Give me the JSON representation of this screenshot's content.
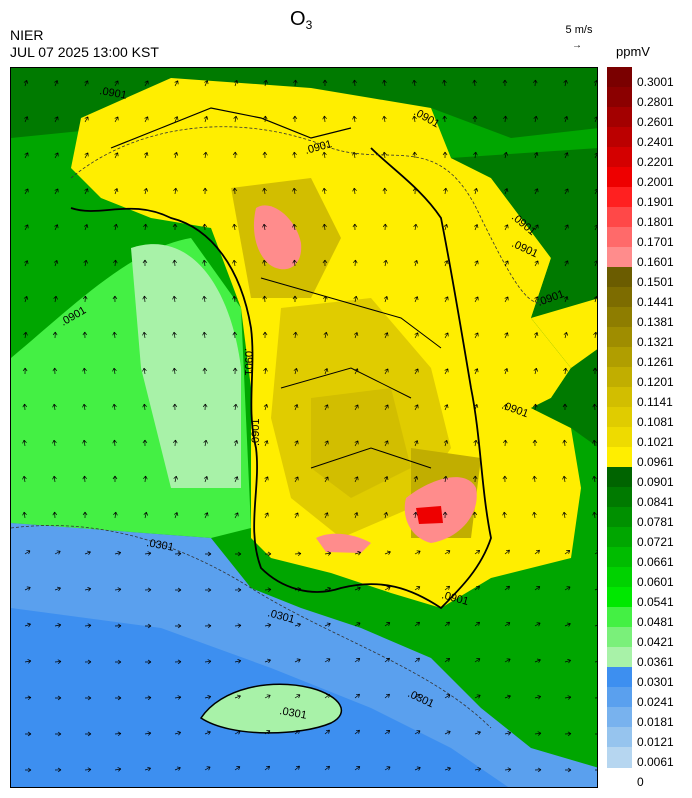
{
  "header": {
    "title_main": "O",
    "title_sub": "3",
    "source": "NIER",
    "datetime": "JUL 07 2025 13:00 KST",
    "wind_reference": "5 m/s",
    "wind_arrow": "→",
    "unit": "ppmV"
  },
  "colorbar": {
    "labels": [
      "0.3001",
      "0.2801",
      "0.2601",
      "0.2401",
      "0.2201",
      "0.2001",
      "0.1901",
      "0.1801",
      "0.1701",
      "0.1601",
      "0.1501",
      "0.1441",
      "0.1381",
      "0.1321",
      "0.1261",
      "0.1201",
      "0.1141",
      "0.1081",
      "0.1021",
      "0.0961",
      "0.0901",
      "0.0841",
      "0.0781",
      "0.0721",
      "0.0661",
      "0.0601",
      "0.0541",
      "0.0481",
      "0.0421",
      "0.0361",
      "0.0301",
      "0.0241",
      "0.0181",
      "0.0121",
      "0.0061",
      "0"
    ],
    "colors": [
      "#7a0000",
      "#8b0000",
      "#a30000",
      "#bb0000",
      "#d40000",
      "#ee0000",
      "#ff2020",
      "#ff4848",
      "#ff6a6a",
      "#ff8c8c",
      "#6b5c00",
      "#7d6c00",
      "#8e7d00",
      "#9f8d00",
      "#b09e00",
      "#c1ae00",
      "#d2be00",
      "#e0cc00",
      "#eedb00",
      "#ffee00",
      "#006400",
      "#007a00",
      "#009000",
      "#00a600",
      "#00bc00",
      "#00d200",
      "#00e800",
      "#44f044",
      "#7af07a",
      "#a8f2a8",
      "#3d8ff0",
      "#5aa0ee",
      "#78b2ee",
      "#96c4ee",
      "#b6d6f0"
    ]
  },
  "map": {
    "contour_labels": [
      ".0901",
      ".0901",
      ".0901",
      ".0901",
      ".0901",
      ".0901",
      ".0901",
      ".0901",
      ".0901",
      ".0901",
      ".0901",
      ".0301",
      ".0301",
      ".0301",
      ".0301"
    ]
  }
}
